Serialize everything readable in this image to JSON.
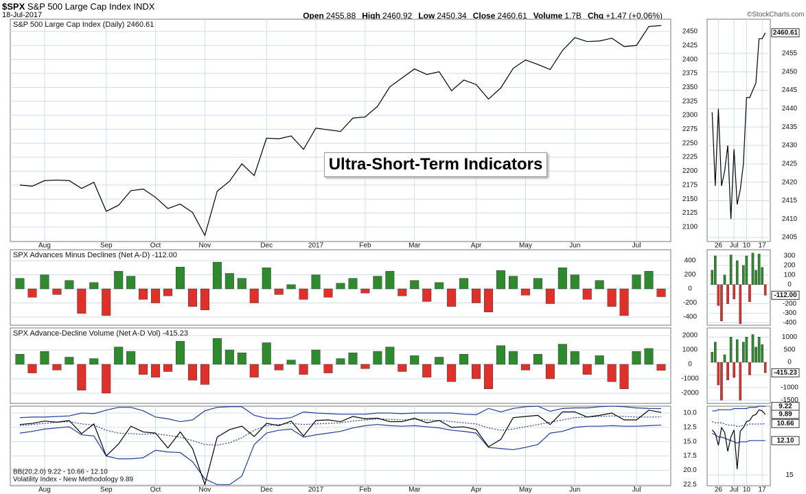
{
  "header": {
    "symbol": "$SPX",
    "name": "S&P 500 Large Cap Index",
    "exchange": "INDX",
    "date": "18-Jul-2017",
    "copyright": "©StockCharts.com",
    "quote": [
      {
        "label": "Open",
        "value": "2455.88"
      },
      {
        "label": "High",
        "value": "2460.92"
      },
      {
        "label": "Low",
        "value": "2450.34"
      },
      {
        "label": "Close",
        "value": "2460.61"
      },
      {
        "label": "Volume",
        "value": "1.7B"
      },
      {
        "label": "Chg",
        "value": "+1.47 (+0.06%)"
      }
    ]
  },
  "annotation": "Ultra-Short-Term Indicators",
  "chart_data": [
    {
      "type": "line",
      "title": "S&P 500 Large Cap Index (Daily) 2460.61",
      "ylim": [
        2074,
        2472
      ],
      "yticks": [
        2100,
        2125,
        2150,
        2175,
        2200,
        2225,
        2250,
        2275,
        2300,
        2325,
        2350,
        2375,
        2400,
        2425,
        2450
      ],
      "categories": [
        null,
        null,
        "Aug",
        null,
        null,
        null,
        null,
        "Sep",
        null,
        null,
        null,
        "Oct",
        null,
        null,
        null,
        "Nov",
        null,
        null,
        null,
        null,
        "Dec",
        null,
        null,
        null,
        "2017",
        null,
        null,
        null,
        "Feb",
        null,
        null,
        null,
        "Mar",
        null,
        null,
        null,
        null,
        "Apr",
        null,
        null,
        null,
        "May",
        null,
        null,
        null,
        "Jun",
        null,
        null,
        null,
        null,
        "Jul",
        null,
        null
      ],
      "series": [
        {
          "color": "#000000",
          "values": [
            2175,
            2173,
            2183,
            2184,
            2183,
            2169,
            2180,
            2128,
            2139,
            2165,
            2168,
            2153,
            2133,
            2141,
            2126,
            2085,
            2164,
            2182,
            2213,
            2192,
            2259,
            2258,
            2263,
            2239,
            2277,
            2274,
            2271,
            2295,
            2297,
            2316,
            2351,
            2367,
            2383,
            2373,
            2378,
            2344,
            2363,
            2355,
            2329,
            2349,
            2384,
            2399,
            2391,
            2382,
            2416,
            2439,
            2432,
            2433,
            2438,
            2423,
            2425,
            2459,
            2460.61
          ]
        }
      ]
    },
    {
      "type": "line",
      "ylim": [
        2403.9,
        2464.3
      ],
      "yticks": [
        2405,
        2410,
        2415,
        2420,
        2425,
        2430,
        2435,
        2440,
        2445,
        2450,
        2455
      ],
      "categories": [
        null,
        null,
        "26",
        null,
        null,
        null,
        null,
        "Jul",
        null,
        null,
        null,
        "10",
        null,
        null,
        null,
        null,
        "17",
        null
      ],
      "series": [
        {
          "color": "#000000",
          "values": [
            2439,
            2419,
            2440,
            2419,
            2423,
            2430,
            2410,
            2429,
            2414,
            2418,
            2425,
            2443,
            2443,
            2445,
            2447,
            2459,
            2459,
            2460.61
          ],
          "value_labels": [
            null,
            null,
            null,
            null,
            null,
            null,
            null,
            null,
            null,
            null,
            null,
            null,
            null,
            null,
            null,
            null,
            null,
            "2460.61"
          ]
        }
      ]
    },
    {
      "type": "bar",
      "title": "SPX Advances Minus Declines (Net A-D) -112.00",
      "ylim": [
        -517,
        556
      ],
      "yticks": [
        400,
        200,
        0,
        -200,
        -400
      ],
      "up_color": "#2f8a2f",
      "down_color": "#e0302a",
      "series": [
        {
          "values": [
            150,
            -120,
            200,
            -80,
            120,
            -350,
            90,
            -380,
            250,
            180,
            -150,
            -200,
            -100,
            310,
            -250,
            -300,
            380,
            220,
            150,
            -200,
            300,
            -80,
            60,
            -150,
            200,
            -120,
            80,
            150,
            -60,
            180,
            250,
            -100,
            120,
            -180,
            90,
            -250,
            150,
            -200,
            -330,
            260,
            180,
            -90,
            150,
            -210,
            300,
            200,
            -150,
            120,
            -250,
            -380,
            200,
            250,
            -112
          ]
        }
      ]
    },
    {
      "type": "bar",
      "ylim": [
        -425,
        364
      ],
      "yticks": [
        300,
        200,
        100,
        0,
        -100,
        -200,
        -300,
        -400
      ],
      "up_color": "#2f8a2f",
      "down_color": "#e0302a",
      "series": [
        {
          "values": [
            150,
            300,
            -220,
            -380,
            100,
            -200,
            310,
            -150,
            250,
            -410,
            200,
            300,
            -180,
            330,
            150,
            320,
            180,
            -112
          ],
          "value_labels": [
            null,
            null,
            null,
            null,
            null,
            null,
            null,
            null,
            null,
            null,
            null,
            null,
            null,
            null,
            null,
            null,
            null,
            "-112.00"
          ]
        }
      ]
    },
    {
      "type": "bar",
      "title": "SPX Advance-Decline Volume (Net A-D Vol) -415.23",
      "ylim": [
        -2714,
        2524
      ],
      "yticks": [
        2000,
        1000,
        0,
        -1000,
        -2000
      ],
      "up_color": "#2f8a2f",
      "down_color": "#e0302a",
      "series": [
        {
          "values": [
            700,
            -600,
            900,
            -400,
            500,
            -1800,
            400,
            -2000,
            1200,
            900,
            -700,
            -900,
            -500,
            1600,
            -1100,
            -1400,
            1800,
            1000,
            800,
            -900,
            1500,
            -400,
            300,
            -700,
            1000,
            -600,
            400,
            800,
            -300,
            900,
            1200,
            -500,
            600,
            -900,
            500,
            -1200,
            700,
            -1000,
            -1700,
            1300,
            900,
            -400,
            700,
            -1000,
            1400,
            900,
            -700,
            600,
            -1200,
            -1700,
            900,
            1100,
            -415.23
          ]
        }
      ]
    },
    {
      "type": "bar",
      "ylim": [
        -1628,
        1359
      ],
      "yticks": [
        1000,
        500,
        0,
        -500,
        -1000,
        -1500
      ],
      "up_color": "#2f8a2f",
      "down_color": "#e0302a",
      "series": [
        {
          "values": [
            400,
            800,
            -900,
            -1500,
            300,
            -700,
            1000,
            -600,
            900,
            -1500,
            800,
            1000,
            -500,
            1100,
            600,
            1000,
            700,
            -415.23
          ],
          "value_labels": [
            null,
            null,
            null,
            null,
            null,
            null,
            null,
            null,
            null,
            null,
            null,
            null,
            null,
            null,
            null,
            null,
            null,
            "-415.23"
          ]
        }
      ]
    },
    {
      "type": "line",
      "inverted": true,
      "ylim": [
        8.8,
        22.7
      ],
      "yticks": [
        {
          "value": 10,
          "label": "10.0"
        },
        {
          "value": 12.5,
          "label": "12.5"
        },
        {
          "value": 15,
          "label": "15.0"
        },
        {
          "value": 17.5,
          "label": "17.5"
        },
        {
          "value": 20,
          "label": "20.0"
        },
        {
          "value": 22.5,
          "label": "22.5"
        }
      ],
      "legend": [
        "BB(20,2.0) 9.22 - 10.66 - 12.10",
        "Volatility Index - New Methodology 9.89"
      ],
      "categories": [
        null,
        null,
        "Aug",
        null,
        null,
        null,
        null,
        "Sep",
        null,
        null,
        null,
        "Oct",
        null,
        null,
        null,
        "Nov",
        null,
        null,
        null,
        null,
        "Dec",
        null,
        null,
        null,
        "2017",
        null,
        null,
        null,
        "Feb",
        null,
        null,
        null,
        "Mar",
        null,
        null,
        null,
        null,
        "Apr",
        null,
        null,
        null,
        "May",
        null,
        null,
        null,
        "Jun",
        null,
        null,
        null,
        null,
        "Jul",
        null,
        null
      ],
      "series": [
        {
          "color": "#1f3c99",
          "values": [
            10.8,
            10.7,
            10.7,
            10.6,
            10.5,
            10.0,
            10.1,
            9.5,
            9.0,
            9.0,
            9.6,
            10.7,
            11.0,
            11.5,
            11.2,
            9.6,
            9.0,
            8.9,
            8.9,
            10.4,
            10.9,
            11.0,
            10.8,
            9.8,
            10.0,
            10.1,
            10.2,
            10.2,
            10.2,
            10.0,
            10.0,
            10.1,
            10.0,
            10.0,
            10.0,
            10.0,
            10.2,
            10.3,
            9.2,
            9.8,
            9.2,
            8.9,
            8.8,
            9.7,
            9.2,
            9.1,
            9.1,
            8.9,
            8.8,
            8.9,
            9.1,
            9.2,
            9.22
          ]
        },
        {
          "color": "#1f3c99",
          "dashed": true,
          "values": [
            12.2,
            12.0,
            11.8,
            11.6,
            11.5,
            11.9,
            12.1,
            13.0,
            13.5,
            13.6,
            13.7,
            13.6,
            13.9,
            14.2,
            14.8,
            15.5,
            15.6,
            15.2,
            14.3,
            13.0,
            12.2,
            12.0,
            11.8,
            12.0,
            11.9,
            11.8,
            11.7,
            11.4,
            11.2,
            11.0,
            11.1,
            11.2,
            11.1,
            11.2,
            11.3,
            11.5,
            11.7,
            11.9,
            12.6,
            13.0,
            12.8,
            12.4,
            12.0,
            11.6,
            11.2,
            10.8,
            10.7,
            10.6,
            10.5,
            10.6,
            10.7,
            10.7,
            10.66
          ]
        },
        {
          "color": "#1f3c99",
          "values": [
            13.5,
            13.2,
            12.8,
            12.6,
            12.4,
            13.8,
            14.0,
            17.5,
            18.0,
            18.0,
            17.8,
            16.5,
            16.8,
            16.9,
            18.5,
            21.5,
            22.5,
            22.5,
            21.0,
            15.5,
            13.5,
            13.0,
            12.8,
            14.2,
            13.8,
            13.5,
            13.2,
            12.6,
            12.2,
            12.0,
            12.2,
            12.3,
            12.2,
            12.4,
            12.6,
            13.0,
            13.2,
            13.5,
            16.0,
            16.2,
            16.4,
            16.0,
            15.5,
            13.5,
            13.2,
            12.5,
            12.3,
            12.3,
            12.2,
            12.3,
            12.3,
            12.2,
            12.1
          ]
        },
        {
          "color": "#000000",
          "values": [
            12.0,
            11.8,
            11.4,
            11.6,
            11.3,
            13.6,
            11.9,
            17.5,
            15.4,
            12.3,
            13.3,
            13.5,
            16.1,
            13.3,
            16.2,
            22.5,
            14.2,
            12.9,
            12.3,
            14.1,
            11.8,
            12.2,
            11.4,
            14.0,
            11.3,
            11.2,
            11.5,
            10.6,
            11.0,
            10.9,
            11.5,
            11.5,
            10.9,
            11.7,
            11.3,
            12.5,
            12.4,
            12.9,
            15.9,
            14.6,
            10.8,
            10.6,
            10.4,
            12.0,
            9.8,
            9.8,
            10.7,
            10.4,
            10.0,
            11.2,
            11.2,
            9.5,
            9.89
          ]
        }
      ]
    },
    {
      "type": "line",
      "inverted": true,
      "ylim": [
        9.2,
        15.9
      ],
      "yticks": [
        15
      ],
      "categories": [
        null,
        null,
        "26",
        null,
        null,
        null,
        null,
        "Jul",
        null,
        null,
        null,
        "10",
        null,
        null,
        null,
        null,
        "17",
        null
      ],
      "series": [
        {
          "color": "#1f3c99",
          "values": [
            9.6,
            9.6,
            9.5,
            9.5,
            9.5,
            9.5,
            9.5,
            9.4,
            9.4,
            9.4,
            9.4,
            9.4,
            9.3,
            9.3,
            9.3,
            9.2,
            9.2,
            9.22
          ],
          "value_labels": [
            null,
            null,
            null,
            null,
            null,
            null,
            null,
            null,
            null,
            null,
            null,
            null,
            null,
            null,
            null,
            null,
            null,
            "9.22"
          ]
        },
        {
          "color": "#1f3c99",
          "dashed": true,
          "values": [
            10.5,
            10.6,
            10.6,
            10.6,
            10.7,
            10.8,
            10.8,
            10.8,
            10.9,
            10.9,
            10.8,
            10.8,
            10.7,
            10.7,
            10.7,
            10.7,
            10.7,
            10.66
          ],
          "value_labels": [
            null,
            null,
            null,
            null,
            null,
            null,
            null,
            null,
            null,
            null,
            null,
            null,
            null,
            null,
            null,
            null,
            null,
            "10.66"
          ]
        },
        {
          "color": "#1f3c99",
          "values": [
            11.5,
            11.6,
            11.8,
            11.8,
            11.9,
            12.0,
            12.1,
            12.2,
            12.3,
            12.2,
            12.2,
            12.2,
            12.1,
            12.1,
            12.1,
            12.1,
            12.1,
            12.1
          ],
          "value_labels": [
            null,
            null,
            null,
            null,
            null,
            null,
            null,
            null,
            null,
            null,
            null,
            null,
            null,
            null,
            null,
            null,
            null,
            "12.10"
          ]
        },
        {
          "color": "#000000",
          "values": [
            11.2,
            11.5,
            12.5,
            11.0,
            11.4,
            13.0,
            11.8,
            11.2,
            14.5,
            11.3,
            11.0,
            10.5,
            10.4,
            10.0,
            9.9,
            9.5,
            9.6,
            9.89
          ],
          "value_labels": [
            null,
            null,
            null,
            null,
            null,
            null,
            null,
            null,
            null,
            null,
            null,
            null,
            null,
            null,
            null,
            null,
            null,
            "9.89"
          ]
        }
      ]
    }
  ]
}
